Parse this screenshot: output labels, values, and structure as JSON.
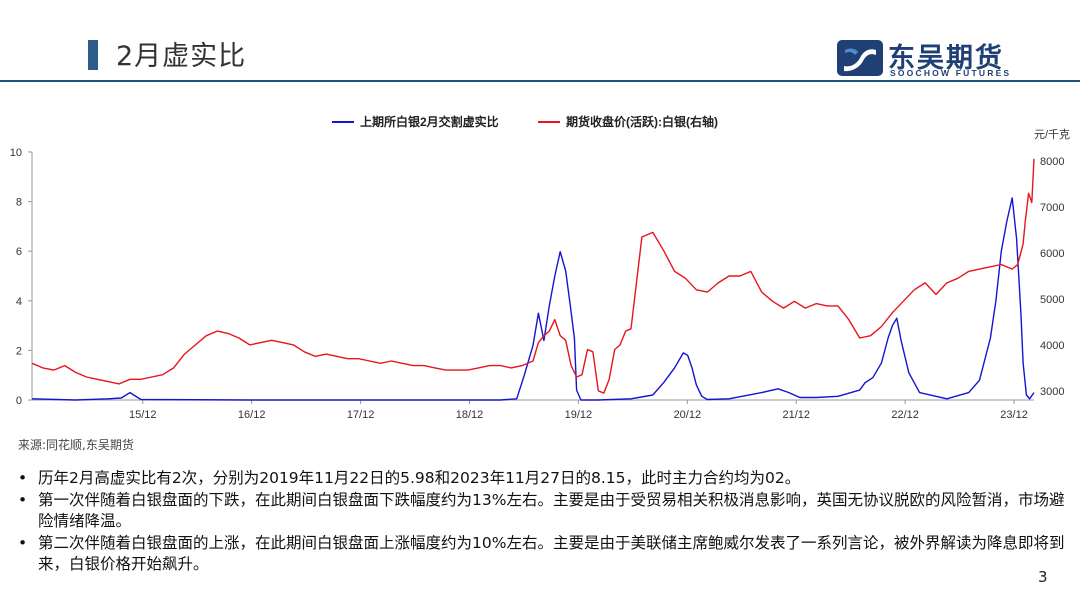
{
  "page": {
    "title": "2月虚实比",
    "logo_cn": "东吴期货",
    "logo_en": "SOOCHOW FUTURES",
    "source": "来源:同花顺,东吴期货",
    "page_number": "3",
    "bullet_marker": "•",
    "bullets": [
      "历年2月高虚实比有2次，分别为2019年11月22日的5.98和2023年11月27日的8.15，此时主力合约均为02。",
      "第一次伴随着白银盘面的下跌，在此期间白银盘面下跌幅度约为13%左右。主要是由于受贸易相关积极消息影响，英国无协议脱欧的风险暂消，市场避险情绪降温。",
      "第二次伴随着白银盘面的上涨，在此期间白银盘面上涨幅度约为10%左右。主要是由于美联储主席鲍威尔发表了一系列言论，被外界解读为降息即将到来，白银价格开始飙升。"
    ],
    "colors": {
      "brand": "#1f3f75",
      "ratio": "#1414d2",
      "price": "#e8141e"
    }
  },
  "chart_data": {
    "type": "line",
    "right_axis_unit": "元/千克",
    "left_ylim": [
      0,
      10
    ],
    "left_ticks": [
      "0",
      "2",
      "4",
      "6",
      "8",
      "10"
    ],
    "right_ylim": [
      2800,
      8200
    ],
    "right_ticks": [
      "3000",
      "4000",
      "5000",
      "6000",
      "7000",
      "8000"
    ],
    "x_ticks": [
      "15/12",
      "16/12",
      "17/12",
      "18/12",
      "19/12",
      "20/12",
      "21/12",
      "22/12",
      "23/12"
    ],
    "x_tick_positions": [
      2015.917,
      2016.917,
      2017.917,
      2018.917,
      2019.917,
      2020.917,
      2021.917,
      2022.917,
      2023.917
    ],
    "xlim": [
      2014.9,
      2024.1
    ],
    "series": [
      {
        "name": "上期所白银2月交割虚实比",
        "axis": "left",
        "color": "#1414d2",
        "x": [
          2014.9,
          2015.3,
          2015.6,
          2015.72,
          2015.8,
          2015.9,
          2016.9,
          2017.9,
          2018.9,
          2019.2,
          2019.35,
          2019.42,
          2019.5,
          2019.55,
          2019.6,
          2019.65,
          2019.7,
          2019.75,
          2019.8,
          2019.84,
          2019.88,
          2019.9,
          2019.94,
          2019.97,
          2020.0,
          2020.05,
          2020.1,
          2020.4,
          2020.6,
          2020.7,
          2020.8,
          2020.88,
          2020.92,
          2020.96,
          2021.0,
          2021.05,
          2021.1,
          2021.3,
          2021.6,
          2021.75,
          2021.85,
          2021.95,
          2022.1,
          2022.3,
          2022.5,
          2022.55,
          2022.62,
          2022.7,
          2022.76,
          2022.8,
          2022.84,
          2022.88,
          2022.95,
          2023.05,
          2023.3,
          2023.5,
          2023.6,
          2023.7,
          2023.75,
          2023.8,
          2023.85,
          2023.9,
          2023.94,
          2023.98,
          2024.0,
          2024.03,
          2024.06,
          2024.1
        ],
        "y": [
          0.05,
          0.0,
          0.05,
          0.08,
          0.3,
          0.02,
          0.0,
          0.0,
          0.0,
          0.0,
          0.05,
          1.0,
          2.2,
          3.5,
          2.4,
          3.8,
          5.0,
          5.98,
          5.2,
          3.9,
          2.5,
          0.4,
          0.0,
          0.0,
          0.0,
          0.0,
          0.0,
          0.05,
          0.2,
          0.7,
          1.3,
          1.9,
          1.8,
          1.3,
          0.6,
          0.15,
          0.02,
          0.05,
          0.3,
          0.45,
          0.3,
          0.1,
          0.1,
          0.15,
          0.4,
          0.7,
          0.9,
          1.5,
          2.5,
          3.0,
          3.3,
          2.4,
          1.1,
          0.3,
          0.05,
          0.3,
          0.8,
          2.5,
          4.0,
          6.0,
          7.2,
          8.15,
          6.5,
          3.5,
          1.5,
          0.2,
          0.05,
          0.3
        ]
      },
      {
        "name": "期货收盘价(活跃):白银(右轴)",
        "axis": "right",
        "color": "#e8141e",
        "x": [
          2014.9,
          2015.0,
          2015.1,
          2015.2,
          2015.3,
          2015.4,
          2015.5,
          2015.6,
          2015.7,
          2015.8,
          2015.9,
          2016.0,
          2016.1,
          2016.2,
          2016.3,
          2016.4,
          2016.5,
          2016.6,
          2016.7,
          2016.8,
          2016.9,
          2017.0,
          2017.1,
          2017.2,
          2017.3,
          2017.4,
          2017.5,
          2017.6,
          2017.7,
          2017.8,
          2017.9,
          2018.0,
          2018.1,
          2018.2,
          2018.3,
          2018.4,
          2018.5,
          2018.6,
          2018.7,
          2018.8,
          2018.9,
          2019.0,
          2019.1,
          2019.2,
          2019.3,
          2019.4,
          2019.5,
          2019.55,
          2019.6,
          2019.65,
          2019.7,
          2019.75,
          2019.8,
          2019.85,
          2019.9,
          2019.95,
          2020.0,
          2020.05,
          2020.1,
          2020.15,
          2020.2,
          2020.25,
          2020.3,
          2020.35,
          2020.4,
          2020.5,
          2020.6,
          2020.7,
          2020.8,
          2020.9,
          2021.0,
          2021.1,
          2021.2,
          2021.3,
          2021.4,
          2021.5,
          2021.6,
          2021.7,
          2021.8,
          2021.9,
          2022.0,
          2022.1,
          2022.2,
          2022.3,
          2022.4,
          2022.5,
          2022.6,
          2022.7,
          2022.8,
          2022.9,
          2023.0,
          2023.1,
          2023.2,
          2023.3,
          2023.4,
          2023.5,
          2023.6,
          2023.7,
          2023.8,
          2023.9,
          2023.95,
          2024.0,
          2024.02,
          2024.05,
          2024.08,
          2024.1
        ],
        "y": [
          3600,
          3500,
          3450,
          3550,
          3400,
          3300,
          3250,
          3200,
          3150,
          3250,
          3250,
          3300,
          3350,
          3500,
          3800,
          4000,
          4200,
          4300,
          4250,
          4150,
          4000,
          4050,
          4100,
          4050,
          4000,
          3850,
          3750,
          3800,
          3750,
          3700,
          3700,
          3650,
          3600,
          3650,
          3600,
          3550,
          3550,
          3500,
          3450,
          3450,
          3450,
          3500,
          3550,
          3550,
          3500,
          3550,
          3650,
          4050,
          4200,
          4300,
          4550,
          4200,
          4100,
          3550,
          3300,
          3350,
          3900,
          3850,
          3000,
          2950,
          3250,
          3900,
          4000,
          4300,
          4350,
          6350,
          6450,
          6050,
          5600,
          5450,
          5200,
          5150,
          5350,
          5500,
          5500,
          5600,
          5150,
          4950,
          4800,
          4950,
          4800,
          4900,
          4850,
          4850,
          4550,
          4150,
          4200,
          4400,
          4700,
          4950,
          5200,
          5350,
          5100,
          5350,
          5450,
          5600,
          5650,
          5700,
          5750,
          5650,
          5750,
          6200,
          6700,
          7300,
          7100,
          8050
        ]
      }
    ]
  }
}
